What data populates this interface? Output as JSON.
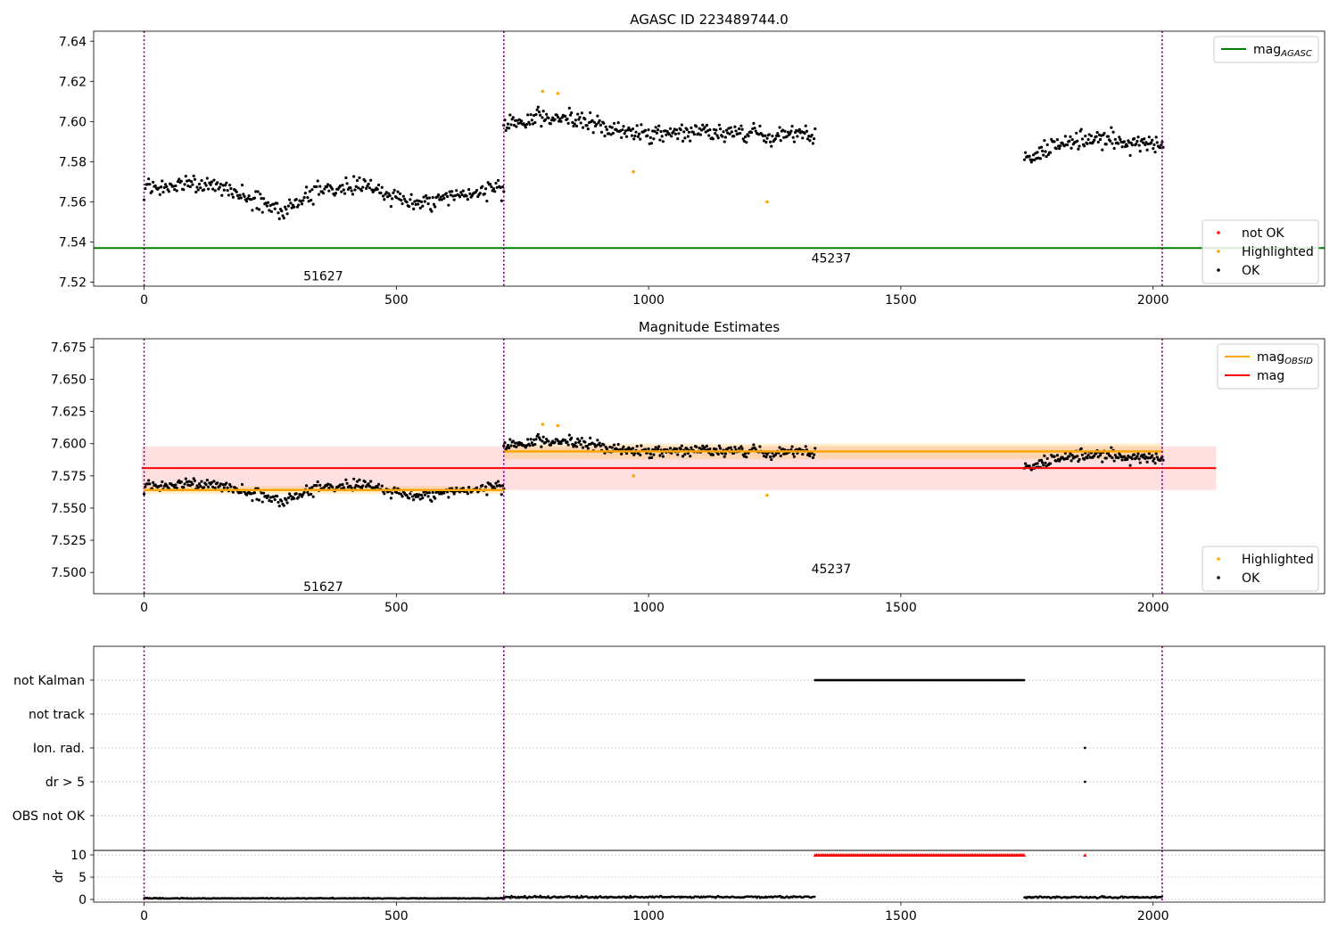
{
  "chart_data": [
    {
      "type": "scatter",
      "title": "AGASC ID 223489744.0",
      "xlim": [
        -100,
        2340
      ],
      "ylim": [
        7.518,
        7.645
      ],
      "yticks": [
        "7.52",
        "7.54",
        "7.56",
        "7.58",
        "7.60",
        "7.62",
        "7.64"
      ],
      "xticks": [
        "0",
        "500",
        "1000",
        "1500",
        "2000"
      ],
      "grid": false,
      "vlines": [
        0,
        713,
        2018
      ],
      "mag_agasc": 7.537,
      "obs_labels": [
        {
          "text": "51627",
          "x": 355,
          "y": 7.523
        },
        {
          "text": "45237",
          "x": 1362,
          "y": 7.532
        }
      ],
      "segments": [
        {
          "x_start": 0,
          "x_end": 713,
          "base": [
            7.566,
            7.57,
            7.565,
            7.556,
            7.567,
            7.568,
            7.558,
            7.563,
            7.567
          ],
          "spread": 0.008
        },
        {
          "x_start": 713,
          "x_end": 1330,
          "base": [
            7.598,
            7.602,
            7.597,
            7.594,
            7.595,
            7.593,
            7.594
          ],
          "spread": 0.009
        },
        {
          "x_start": 1745,
          "x_end": 2020,
          "base": [
            7.582,
            7.588,
            7.592,
            7.589,
            7.589
          ],
          "spread": 0.008
        }
      ],
      "highlighted": [
        {
          "x": 790,
          "y": 7.615
        },
        {
          "x": 820,
          "y": 7.614
        },
        {
          "x": 970,
          "y": 7.575
        },
        {
          "x": 1235,
          "y": 7.56
        }
      ],
      "legend_top": [
        {
          "label": "mag",
          "sub": "AGASC",
          "color": "#008000"
        }
      ],
      "legend_bottom": [
        {
          "label": "not OK",
          "color": "#ff0000"
        },
        {
          "label": "Highlighted",
          "color": "#ffa500"
        },
        {
          "label": "OK",
          "color": "#000000"
        }
      ]
    },
    {
      "type": "scatter",
      "title": "Magnitude Estimates",
      "xlim": [
        -100,
        2340
      ],
      "ylim": [
        7.4835,
        7.6815
      ],
      "yticks": [
        "7.500",
        "7.525",
        "7.550",
        "7.575",
        "7.600",
        "7.625",
        "7.650",
        "7.675"
      ],
      "xticks": [
        "0",
        "500",
        "1000",
        "1500",
        "2000"
      ],
      "vlines": [
        0,
        713,
        2018
      ],
      "mag": 7.581,
      "mag_band": [
        7.564,
        7.598
      ],
      "mag_range": [
        -5,
        2125
      ],
      "mag_obsid": [
        {
          "x_start": 0,
          "x_end": 713,
          "value": 7.564,
          "band": [
            7.561,
            7.567
          ]
        },
        {
          "x_start": 713,
          "x_end": 2020,
          "value": 7.594,
          "band": [
            7.588,
            7.6
          ]
        }
      ],
      "obs_labels": [
        {
          "text": "51627",
          "x": 355,
          "y": 7.489
        },
        {
          "text": "45237",
          "x": 1362,
          "y": 7.503
        }
      ],
      "legend_top": [
        {
          "label": "mag",
          "sub": "OBSID",
          "color": "#ffa500"
        },
        {
          "label": "mag",
          "sub": "",
          "color": "#ff0000"
        }
      ],
      "legend_bottom": [
        {
          "label": "Highlighted",
          "color": "#ffa500"
        },
        {
          "label": "OK",
          "color": "#000000"
        }
      ]
    },
    {
      "type": "scatter",
      "categories": [
        "not Kalman",
        "not track",
        "Ion. rad.",
        "dr > 5",
        "OBS not OK"
      ],
      "xlim": [
        -100,
        2340
      ],
      "vlines": [
        0,
        713,
        2018
      ],
      "flags": [
        {
          "category": "not Kalman",
          "x_start": 1330,
          "x_end": 1745
        },
        {
          "category": "Ion. rad.",
          "x": 1865
        },
        {
          "category": "dr > 5",
          "x": 1865
        }
      ]
    },
    {
      "type": "scatter",
      "ylabel": "dr",
      "yticks": [
        "0",
        "5",
        "10"
      ],
      "ylim": [
        -0.6,
        11
      ],
      "xticks": [
        "0",
        "500",
        "1000",
        "1500",
        "2000"
      ],
      "xlim": [
        -100,
        2340
      ],
      "vlines": [
        0,
        713,
        2018
      ],
      "dr_segments": [
        {
          "x_start": 0,
          "x_end": 713,
          "level": 0.25
        },
        {
          "x_start": 713,
          "x_end": 1330,
          "level": 0.55
        },
        {
          "x_start": 1745,
          "x_end": 2020,
          "level": 0.5
        }
      ],
      "clipped": [
        {
          "x_start": 1330,
          "x_end": 1745,
          "value": 10
        },
        {
          "x": 1865,
          "value": 10
        }
      ]
    }
  ]
}
